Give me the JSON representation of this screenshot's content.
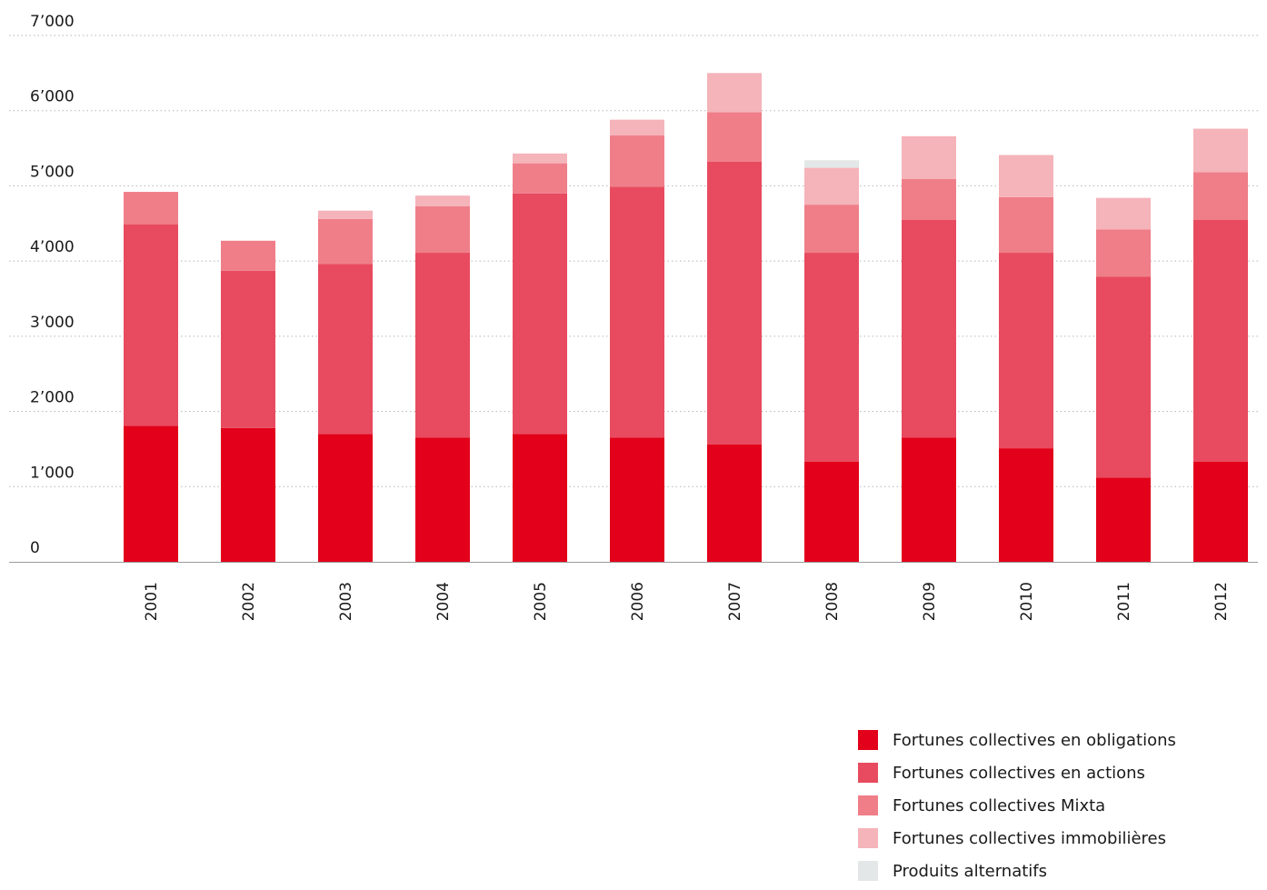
{
  "chart_data": {
    "type": "bar",
    "stacked": true,
    "categories": [
      "2001",
      "2002",
      "2003",
      "2004",
      "2005",
      "2006",
      "2007",
      "2008",
      "2009",
      "2010",
      "2011",
      "2012"
    ],
    "series": [
      {
        "name": "Fortunes collectives en obligations",
        "color": "#e2001a",
        "values": [
          1810,
          1780,
          1700,
          1650,
          1700,
          1650,
          1560,
          1330,
          1650,
          1510,
          1120,
          1330
        ]
      },
      {
        "name": "Fortunes collectives en actions",
        "color": "#e84b5f",
        "values": [
          2680,
          2090,
          2260,
          2460,
          3200,
          3340,
          3760,
          2780,
          2900,
          2600,
          2670,
          3220
        ]
      },
      {
        "name": "Fortunes collectives Mixta",
        "color": "#ef7e89",
        "values": [
          430,
          400,
          600,
          620,
          400,
          680,
          660,
          640,
          540,
          740,
          630,
          630
        ]
      },
      {
        "name": "Fortunes collectives immobilières",
        "color": "#f5b3ba",
        "values": [
          0,
          0,
          110,
          140,
          130,
          210,
          520,
          490,
          570,
          560,
          420,
          580
        ]
      },
      {
        "name": "Produits alternatifs",
        "color": "#e3e7e7",
        "values": [
          0,
          0,
          0,
          0,
          0,
          0,
          0,
          100,
          0,
          0,
          0,
          0
        ]
      }
    ],
    "ylim": [
      0,
      7000
    ],
    "yticks": [
      0,
      1000,
      2000,
      3000,
      4000,
      5000,
      6000,
      7000
    ],
    "ytick_labels": [
      "0",
      "1’000",
      "2’000",
      "3’000",
      "4’000",
      "5’000",
      "6’000",
      "7’000"
    ],
    "grid": true,
    "legend_position": "bottom-right"
  }
}
